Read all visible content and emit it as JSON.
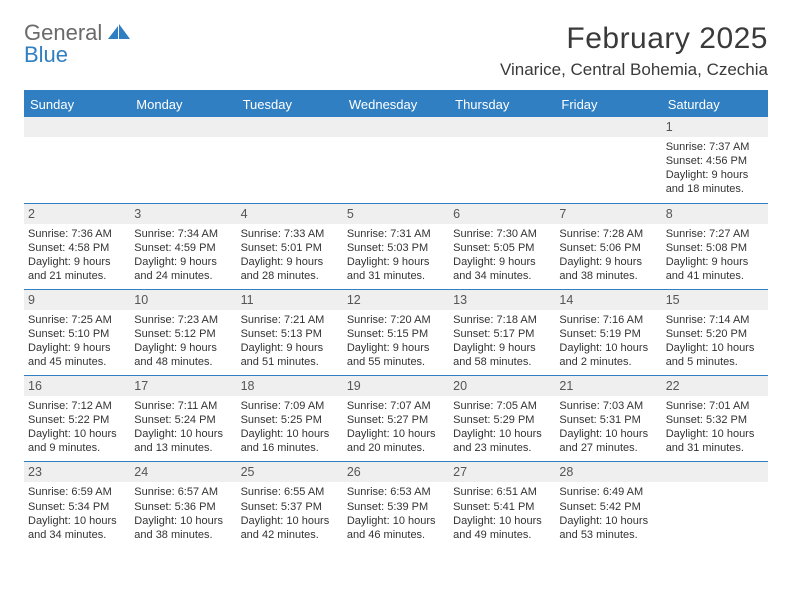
{
  "brand": {
    "line1": "General",
    "line2": "Blue",
    "logo_color": "#2f7fc2",
    "text_color": "#6a6a6a"
  },
  "header": {
    "title": "February 2025",
    "location": "Vinarice, Central Bohemia, Czechia"
  },
  "colors": {
    "accent": "#2f7fc2",
    "header_bg": "#2f7fc2",
    "header_fg": "#ffffff",
    "daynum_bg": "#efefef",
    "border": "#2f7fc2",
    "page_bg": "#ffffff",
    "body_text": "#333333"
  },
  "weekdays": [
    "Sunday",
    "Monday",
    "Tuesday",
    "Wednesday",
    "Thursday",
    "Friday",
    "Saturday"
  ],
  "weeks": [
    [
      {
        "n": "",
        "sr": "",
        "ss": "",
        "dl": ""
      },
      {
        "n": "",
        "sr": "",
        "ss": "",
        "dl": ""
      },
      {
        "n": "",
        "sr": "",
        "ss": "",
        "dl": ""
      },
      {
        "n": "",
        "sr": "",
        "ss": "",
        "dl": ""
      },
      {
        "n": "",
        "sr": "",
        "ss": "",
        "dl": ""
      },
      {
        "n": "",
        "sr": "",
        "ss": "",
        "dl": ""
      },
      {
        "n": "1",
        "sr": "Sunrise: 7:37 AM",
        "ss": "Sunset: 4:56 PM",
        "dl": "Daylight: 9 hours and 18 minutes."
      }
    ],
    [
      {
        "n": "2",
        "sr": "Sunrise: 7:36 AM",
        "ss": "Sunset: 4:58 PM",
        "dl": "Daylight: 9 hours and 21 minutes."
      },
      {
        "n": "3",
        "sr": "Sunrise: 7:34 AM",
        "ss": "Sunset: 4:59 PM",
        "dl": "Daylight: 9 hours and 24 minutes."
      },
      {
        "n": "4",
        "sr": "Sunrise: 7:33 AM",
        "ss": "Sunset: 5:01 PM",
        "dl": "Daylight: 9 hours and 28 minutes."
      },
      {
        "n": "5",
        "sr": "Sunrise: 7:31 AM",
        "ss": "Sunset: 5:03 PM",
        "dl": "Daylight: 9 hours and 31 minutes."
      },
      {
        "n": "6",
        "sr": "Sunrise: 7:30 AM",
        "ss": "Sunset: 5:05 PM",
        "dl": "Daylight: 9 hours and 34 minutes."
      },
      {
        "n": "7",
        "sr": "Sunrise: 7:28 AM",
        "ss": "Sunset: 5:06 PM",
        "dl": "Daylight: 9 hours and 38 minutes."
      },
      {
        "n": "8",
        "sr": "Sunrise: 7:27 AM",
        "ss": "Sunset: 5:08 PM",
        "dl": "Daylight: 9 hours and 41 minutes."
      }
    ],
    [
      {
        "n": "9",
        "sr": "Sunrise: 7:25 AM",
        "ss": "Sunset: 5:10 PM",
        "dl": "Daylight: 9 hours and 45 minutes."
      },
      {
        "n": "10",
        "sr": "Sunrise: 7:23 AM",
        "ss": "Sunset: 5:12 PM",
        "dl": "Daylight: 9 hours and 48 minutes."
      },
      {
        "n": "11",
        "sr": "Sunrise: 7:21 AM",
        "ss": "Sunset: 5:13 PM",
        "dl": "Daylight: 9 hours and 51 minutes."
      },
      {
        "n": "12",
        "sr": "Sunrise: 7:20 AM",
        "ss": "Sunset: 5:15 PM",
        "dl": "Daylight: 9 hours and 55 minutes."
      },
      {
        "n": "13",
        "sr": "Sunrise: 7:18 AM",
        "ss": "Sunset: 5:17 PM",
        "dl": "Daylight: 9 hours and 58 minutes."
      },
      {
        "n": "14",
        "sr": "Sunrise: 7:16 AM",
        "ss": "Sunset: 5:19 PM",
        "dl": "Daylight: 10 hours and 2 minutes."
      },
      {
        "n": "15",
        "sr": "Sunrise: 7:14 AM",
        "ss": "Sunset: 5:20 PM",
        "dl": "Daylight: 10 hours and 5 minutes."
      }
    ],
    [
      {
        "n": "16",
        "sr": "Sunrise: 7:12 AM",
        "ss": "Sunset: 5:22 PM",
        "dl": "Daylight: 10 hours and 9 minutes."
      },
      {
        "n": "17",
        "sr": "Sunrise: 7:11 AM",
        "ss": "Sunset: 5:24 PM",
        "dl": "Daylight: 10 hours and 13 minutes."
      },
      {
        "n": "18",
        "sr": "Sunrise: 7:09 AM",
        "ss": "Sunset: 5:25 PM",
        "dl": "Daylight: 10 hours and 16 minutes."
      },
      {
        "n": "19",
        "sr": "Sunrise: 7:07 AM",
        "ss": "Sunset: 5:27 PM",
        "dl": "Daylight: 10 hours and 20 minutes."
      },
      {
        "n": "20",
        "sr": "Sunrise: 7:05 AM",
        "ss": "Sunset: 5:29 PM",
        "dl": "Daylight: 10 hours and 23 minutes."
      },
      {
        "n": "21",
        "sr": "Sunrise: 7:03 AM",
        "ss": "Sunset: 5:31 PM",
        "dl": "Daylight: 10 hours and 27 minutes."
      },
      {
        "n": "22",
        "sr": "Sunrise: 7:01 AM",
        "ss": "Sunset: 5:32 PM",
        "dl": "Daylight: 10 hours and 31 minutes."
      }
    ],
    [
      {
        "n": "23",
        "sr": "Sunrise: 6:59 AM",
        "ss": "Sunset: 5:34 PM",
        "dl": "Daylight: 10 hours and 34 minutes."
      },
      {
        "n": "24",
        "sr": "Sunrise: 6:57 AM",
        "ss": "Sunset: 5:36 PM",
        "dl": "Daylight: 10 hours and 38 minutes."
      },
      {
        "n": "25",
        "sr": "Sunrise: 6:55 AM",
        "ss": "Sunset: 5:37 PM",
        "dl": "Daylight: 10 hours and 42 minutes."
      },
      {
        "n": "26",
        "sr": "Sunrise: 6:53 AM",
        "ss": "Sunset: 5:39 PM",
        "dl": "Daylight: 10 hours and 46 minutes."
      },
      {
        "n": "27",
        "sr": "Sunrise: 6:51 AM",
        "ss": "Sunset: 5:41 PM",
        "dl": "Daylight: 10 hours and 49 minutes."
      },
      {
        "n": "28",
        "sr": "Sunrise: 6:49 AM",
        "ss": "Sunset: 5:42 PM",
        "dl": "Daylight: 10 hours and 53 minutes."
      },
      {
        "n": "",
        "sr": "",
        "ss": "",
        "dl": ""
      }
    ]
  ]
}
